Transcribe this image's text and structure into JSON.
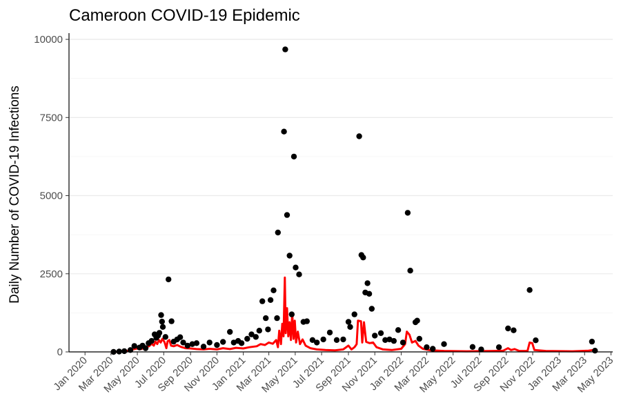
{
  "chart_data": {
    "type": "scatter",
    "title": "Cameroon COVID-19 Epidemic",
    "xlabel": "",
    "ylabel": "Daily Number of COVID-19 Infections",
    "xlim": [
      "2019-11-25",
      "2023-05-05"
    ],
    "ylim": [
      0,
      10200
    ],
    "y_ticks": [
      0,
      2500,
      5000,
      7500,
      10000
    ],
    "x_ticks": [
      {
        "date": "2020-01-01",
        "label": "Jan 2020"
      },
      {
        "date": "2020-03-01",
        "label": "Mar 2020"
      },
      {
        "date": "2020-05-01",
        "label": "May 2020"
      },
      {
        "date": "2020-07-01",
        "label": "Jul 2020"
      },
      {
        "date": "2020-09-01",
        "label": "Sep 2020"
      },
      {
        "date": "2020-11-01",
        "label": "Nov 2020"
      },
      {
        "date": "2021-01-01",
        "label": "Jan 2021"
      },
      {
        "date": "2021-03-01",
        "label": "Mar 2021"
      },
      {
        "date": "2021-05-01",
        "label": "May 2021"
      },
      {
        "date": "2021-07-01",
        "label": "Jul 2021"
      },
      {
        "date": "2021-09-01",
        "label": "Sep 2021"
      },
      {
        "date": "2021-11-01",
        "label": "Nov 2021"
      },
      {
        "date": "2022-01-01",
        "label": "Jan 2022"
      },
      {
        "date": "2022-03-01",
        "label": "Mar 2022"
      },
      {
        "date": "2022-05-01",
        "label": "May 2022"
      },
      {
        "date": "2022-07-01",
        "label": "Jul 2022"
      },
      {
        "date": "2022-09-01",
        "label": "Sep 2022"
      },
      {
        "date": "2022-11-01",
        "label": "Nov 2022"
      },
      {
        "date": "2023-01-01",
        "label": "Jan 2023"
      },
      {
        "date": "2023-03-01",
        "label": "Mar 2023"
      },
      {
        "date": "2023-05-01",
        "label": "May 2023"
      }
    ],
    "grid": true,
    "legend": "none",
    "colors": {
      "points": "#000000",
      "line": "#ff0000"
    },
    "series": [
      {
        "type": "scatter",
        "points": [
          {
            "x": "2020-03-07",
            "y": 1
          },
          {
            "x": "2020-03-20",
            "y": 10
          },
          {
            "x": "2020-04-01",
            "y": 25
          },
          {
            "x": "2020-04-15",
            "y": 60
          },
          {
            "x": "2020-04-24",
            "y": 190
          },
          {
            "x": "2020-05-06",
            "y": 140
          },
          {
            "x": "2020-05-13",
            "y": 200
          },
          {
            "x": "2020-05-20",
            "y": 120
          },
          {
            "x": "2020-05-27",
            "y": 280
          },
          {
            "x": "2020-06-03",
            "y": 350
          },
          {
            "x": "2020-06-10",
            "y": 560
          },
          {
            "x": "2020-06-14",
            "y": 450
          },
          {
            "x": "2020-06-18",
            "y": 520
          },
          {
            "x": "2020-06-21",
            "y": 610
          },
          {
            "x": "2020-06-25",
            "y": 1180
          },
          {
            "x": "2020-06-27",
            "y": 970
          },
          {
            "x": "2020-06-29",
            "y": 800
          },
          {
            "x": "2020-07-05",
            "y": 480
          },
          {
            "x": "2020-07-12",
            "y": 2320
          },
          {
            "x": "2020-07-19",
            "y": 980
          },
          {
            "x": "2020-07-24",
            "y": 330
          },
          {
            "x": "2020-08-01",
            "y": 400
          },
          {
            "x": "2020-08-08",
            "y": 470
          },
          {
            "x": "2020-08-15",
            "y": 300
          },
          {
            "x": "2020-08-25",
            "y": 200
          },
          {
            "x": "2020-09-05",
            "y": 250
          },
          {
            "x": "2020-09-15",
            "y": 280
          },
          {
            "x": "2020-10-01",
            "y": 170
          },
          {
            "x": "2020-10-15",
            "y": 300
          },
          {
            "x": "2020-11-01",
            "y": 220
          },
          {
            "x": "2020-11-15",
            "y": 320
          },
          {
            "x": "2020-12-01",
            "y": 640
          },
          {
            "x": "2020-12-10",
            "y": 300
          },
          {
            "x": "2020-12-20",
            "y": 350
          },
          {
            "x": "2020-12-28",
            "y": 280
          },
          {
            "x": "2021-01-10",
            "y": 420
          },
          {
            "x": "2021-01-20",
            "y": 560
          },
          {
            "x": "2021-01-30",
            "y": 480
          },
          {
            "x": "2021-02-07",
            "y": 680
          },
          {
            "x": "2021-02-14",
            "y": 1620
          },
          {
            "x": "2021-02-22",
            "y": 1080
          },
          {
            "x": "2021-02-27",
            "y": 720
          },
          {
            "x": "2021-03-05",
            "y": 1660
          },
          {
            "x": "2021-03-12",
            "y": 1970
          },
          {
            "x": "2021-03-20",
            "y": 1080
          },
          {
            "x": "2021-03-22",
            "y": 3820
          },
          {
            "x": "2021-04-05",
            "y": 7050
          },
          {
            "x": "2021-04-08",
            "y": 9680
          },
          {
            "x": "2021-04-12",
            "y": 4380
          },
          {
            "x": "2021-04-18",
            "y": 3080
          },
          {
            "x": "2021-04-23",
            "y": 1200
          },
          {
            "x": "2021-04-28",
            "y": 6250
          },
          {
            "x": "2021-05-02",
            "y": 2700
          },
          {
            "x": "2021-05-10",
            "y": 2480
          },
          {
            "x": "2021-05-20",
            "y": 960
          },
          {
            "x": "2021-05-28",
            "y": 980
          },
          {
            "x": "2021-06-10",
            "y": 380
          },
          {
            "x": "2021-06-20",
            "y": 300
          },
          {
            "x": "2021-07-05",
            "y": 400
          },
          {
            "x": "2021-07-20",
            "y": 620
          },
          {
            "x": "2021-08-05",
            "y": 380
          },
          {
            "x": "2021-08-20",
            "y": 400
          },
          {
            "x": "2021-09-01",
            "y": 960
          },
          {
            "x": "2021-09-05",
            "y": 800
          },
          {
            "x": "2021-09-15",
            "y": 1200
          },
          {
            "x": "2021-09-26",
            "y": 6900
          },
          {
            "x": "2021-10-01",
            "y": 3100
          },
          {
            "x": "2021-10-05",
            "y": 3020
          },
          {
            "x": "2021-10-10",
            "y": 1900
          },
          {
            "x": "2021-10-15",
            "y": 2200
          },
          {
            "x": "2021-10-19",
            "y": 1860
          },
          {
            "x": "2021-10-25",
            "y": 1380
          },
          {
            "x": "2021-11-01",
            "y": 520
          },
          {
            "x": "2021-11-15",
            "y": 600
          },
          {
            "x": "2021-11-25",
            "y": 380
          },
          {
            "x": "2021-12-05",
            "y": 400
          },
          {
            "x": "2021-12-15",
            "y": 350
          },
          {
            "x": "2021-12-25",
            "y": 700
          },
          {
            "x": "2022-01-05",
            "y": 300
          },
          {
            "x": "2022-01-16",
            "y": 4450
          },
          {
            "x": "2022-01-22",
            "y": 2600
          },
          {
            "x": "2022-02-03",
            "y": 950
          },
          {
            "x": "2022-02-07",
            "y": 1000
          },
          {
            "x": "2022-02-12",
            "y": 420
          },
          {
            "x": "2022-03-01",
            "y": 150
          },
          {
            "x": "2022-03-15",
            "y": 100
          },
          {
            "x": "2022-04-10",
            "y": 250
          },
          {
            "x": "2022-06-15",
            "y": 160
          },
          {
            "x": "2022-07-05",
            "y": 80
          },
          {
            "x": "2022-08-15",
            "y": 150
          },
          {
            "x": "2022-09-05",
            "y": 750
          },
          {
            "x": "2022-09-18",
            "y": 690
          },
          {
            "x": "2022-10-25",
            "y": 1980
          },
          {
            "x": "2022-11-08",
            "y": 370
          },
          {
            "x": "2023-03-18",
            "y": 330
          },
          {
            "x": "2023-03-25",
            "y": 40
          }
        ]
      },
      {
        "type": "line",
        "points": [
          {
            "x": "2020-03-06",
            "y": 0
          },
          {
            "x": "2020-03-25",
            "y": 10
          },
          {
            "x": "2020-04-10",
            "y": 40
          },
          {
            "x": "2020-04-20",
            "y": 80
          },
          {
            "x": "2020-05-01",
            "y": 110
          },
          {
            "x": "2020-05-10",
            "y": 90
          },
          {
            "x": "2020-05-20",
            "y": 150
          },
          {
            "x": "2020-05-28",
            "y": 180
          },
          {
            "x": "2020-06-03",
            "y": 260
          },
          {
            "x": "2020-06-08",
            "y": 200
          },
          {
            "x": "2020-06-12",
            "y": 330
          },
          {
            "x": "2020-06-16",
            "y": 250
          },
          {
            "x": "2020-06-20",
            "y": 380
          },
          {
            "x": "2020-06-24",
            "y": 300
          },
          {
            "x": "2020-06-28",
            "y": 420
          },
          {
            "x": "2020-07-03",
            "y": 310
          },
          {
            "x": "2020-07-07",
            "y": 120
          },
          {
            "x": "2020-07-10",
            "y": 340
          },
          {
            "x": "2020-07-14",
            "y": 380
          },
          {
            "x": "2020-07-18",
            "y": 200
          },
          {
            "x": "2020-07-24",
            "y": 180
          },
          {
            "x": "2020-08-01",
            "y": 220
          },
          {
            "x": "2020-08-10",
            "y": 160
          },
          {
            "x": "2020-08-20",
            "y": 120
          },
          {
            "x": "2020-09-01",
            "y": 110
          },
          {
            "x": "2020-09-15",
            "y": 90
          },
          {
            "x": "2020-10-01",
            "y": 80
          },
          {
            "x": "2020-10-15",
            "y": 100
          },
          {
            "x": "2020-11-01",
            "y": 80
          },
          {
            "x": "2020-11-15",
            "y": 120
          },
          {
            "x": "2020-12-01",
            "y": 90
          },
          {
            "x": "2020-12-15",
            "y": 130
          },
          {
            "x": "2021-01-01",
            "y": 110
          },
          {
            "x": "2021-01-15",
            "y": 150
          },
          {
            "x": "2021-02-01",
            "y": 180
          },
          {
            "x": "2021-02-10",
            "y": 250
          },
          {
            "x": "2021-02-20",
            "y": 220
          },
          {
            "x": "2021-03-01",
            "y": 300
          },
          {
            "x": "2021-03-10",
            "y": 260
          },
          {
            "x": "2021-03-18",
            "y": 380
          },
          {
            "x": "2021-03-22",
            "y": 150
          },
          {
            "x": "2021-03-25",
            "y": 680
          },
          {
            "x": "2021-03-29",
            "y": 250
          },
          {
            "x": "2021-04-01",
            "y": 900
          },
          {
            "x": "2021-04-04",
            "y": 500
          },
          {
            "x": "2021-04-07",
            "y": 2380
          },
          {
            "x": "2021-04-09",
            "y": 600
          },
          {
            "x": "2021-04-12",
            "y": 1400
          },
          {
            "x": "2021-04-15",
            "y": 500
          },
          {
            "x": "2021-04-18",
            "y": 950
          },
          {
            "x": "2021-04-21",
            "y": 380
          },
          {
            "x": "2021-04-24",
            "y": 1250
          },
          {
            "x": "2021-04-27",
            "y": 420
          },
          {
            "x": "2021-04-30",
            "y": 1000
          },
          {
            "x": "2021-05-03",
            "y": 300
          },
          {
            "x": "2021-05-07",
            "y": 650
          },
          {
            "x": "2021-05-12",
            "y": 250
          },
          {
            "x": "2021-05-18",
            "y": 400
          },
          {
            "x": "2021-05-25",
            "y": 200
          },
          {
            "x": "2021-06-05",
            "y": 120
          },
          {
            "x": "2021-06-20",
            "y": 80
          },
          {
            "x": "2021-07-10",
            "y": 60
          },
          {
            "x": "2021-08-01",
            "y": 50
          },
          {
            "x": "2021-08-20",
            "y": 80
          },
          {
            "x": "2021-09-01",
            "y": 200
          },
          {
            "x": "2021-09-08",
            "y": 80
          },
          {
            "x": "2021-09-15",
            "y": 150
          },
          {
            "x": "2021-09-20",
            "y": 250
          },
          {
            "x": "2021-09-23",
            "y": 1000
          },
          {
            "x": "2021-09-30",
            "y": 980
          },
          {
            "x": "2021-10-03",
            "y": 300
          },
          {
            "x": "2021-10-07",
            "y": 950
          },
          {
            "x": "2021-10-12",
            "y": 320
          },
          {
            "x": "2021-10-20",
            "y": 280
          },
          {
            "x": "2021-10-28",
            "y": 300
          },
          {
            "x": "2021-11-05",
            "y": 150
          },
          {
            "x": "2021-11-20",
            "y": 80
          },
          {
            "x": "2021-12-10",
            "y": 60
          },
          {
            "x": "2022-01-01",
            "y": 100
          },
          {
            "x": "2022-01-10",
            "y": 250
          },
          {
            "x": "2022-01-14",
            "y": 650
          },
          {
            "x": "2022-01-20",
            "y": 550
          },
          {
            "x": "2022-01-26",
            "y": 300
          },
          {
            "x": "2022-02-03",
            "y": 350
          },
          {
            "x": "2022-02-10",
            "y": 200
          },
          {
            "x": "2022-02-20",
            "y": 100
          },
          {
            "x": "2022-03-10",
            "y": 50
          },
          {
            "x": "2022-04-10",
            "y": 30
          },
          {
            "x": "2022-06-01",
            "y": 20
          },
          {
            "x": "2022-08-01",
            "y": 30
          },
          {
            "x": "2022-08-25",
            "y": 40
          },
          {
            "x": "2022-09-05",
            "y": 120
          },
          {
            "x": "2022-09-12",
            "y": 60
          },
          {
            "x": "2022-09-20",
            "y": 90
          },
          {
            "x": "2022-10-01",
            "y": 30
          },
          {
            "x": "2022-10-20",
            "y": 30
          },
          {
            "x": "2022-10-25",
            "y": 300
          },
          {
            "x": "2022-10-31",
            "y": 280
          },
          {
            "x": "2022-11-05",
            "y": 60
          },
          {
            "x": "2022-12-01",
            "y": 30
          },
          {
            "x": "2023-02-01",
            "y": 20
          },
          {
            "x": "2023-03-10",
            "y": 40
          },
          {
            "x": "2023-03-20",
            "y": 60
          },
          {
            "x": "2023-03-28",
            "y": 10
          }
        ]
      }
    ]
  }
}
